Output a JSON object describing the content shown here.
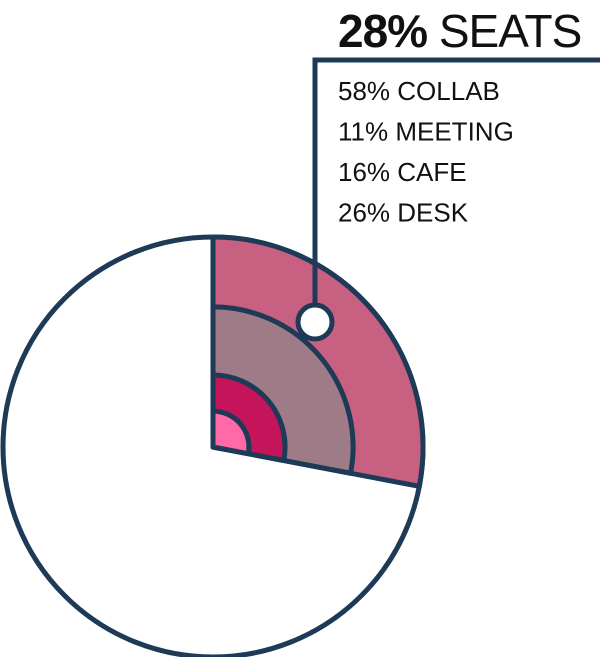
{
  "chart_data": {
    "type": "pie",
    "value": 28,
    "value_label": "28%",
    "title": "SEATS",
    "color": "#c86081",
    "categories": [
      "COLLAB",
      "MEETING",
      "CAFE",
      "DESK"
    ],
    "values": [
      58,
      11,
      16,
      26
    ],
    "value_labels": [
      "58%",
      "11%",
      "16%",
      "26%"
    ],
    "colors": [
      "#c86081",
      "#9e7b86",
      "#c4145a",
      "#ff69a8"
    ]
  }
}
